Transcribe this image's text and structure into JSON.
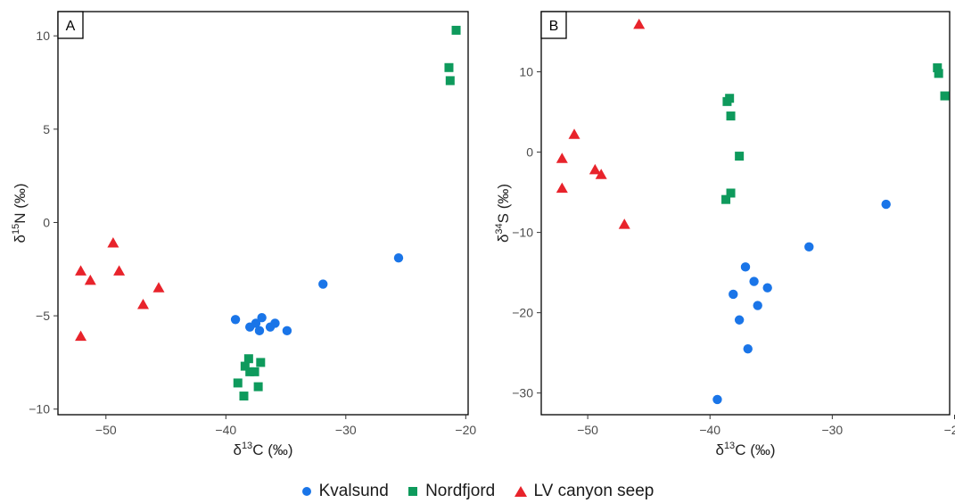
{
  "colors": {
    "Kvalsund": "#1a75e8",
    "Nordfjord": "#0e9a5c",
    "LV canyon seep": "#e8232b",
    "axis": "#000000",
    "tick_text": "#4d4d4d"
  },
  "legend": [
    {
      "label": "Kvalsund",
      "shape": "circle",
      "color": "#1a75e8"
    },
    {
      "label": "Nordfjord",
      "shape": "square",
      "color": "#0e9a5c"
    },
    {
      "label": "LV canyon seep",
      "shape": "triangle",
      "color": "#e8232b"
    }
  ],
  "chart_data": [
    {
      "panel": "A",
      "type": "scatter",
      "xlabel": "δ13C (‰)",
      "ylabel": "δ15N (‰)",
      "xlim": [
        -54,
        -19.8
      ],
      "ylim": [
        -10.3,
        11.3
      ],
      "xticks": [
        -50,
        -40,
        -30,
        -20
      ],
      "yticks": [
        -10,
        -5,
        0,
        5,
        10
      ],
      "grid": false,
      "series": [
        {
          "name": "Kvalsund",
          "shape": "circle",
          "points": [
            [
              -39.2,
              -5.2
            ],
            [
              -38.0,
              -5.6
            ],
            [
              -37.5,
              -5.4
            ],
            [
              -37.2,
              -5.8
            ],
            [
              -37.0,
              -5.1
            ],
            [
              -36.3,
              -5.6
            ],
            [
              -35.9,
              -5.4
            ],
            [
              -34.9,
              -5.8
            ],
            [
              -31.9,
              -3.3
            ],
            [
              -25.6,
              -1.9
            ]
          ]
        },
        {
          "name": "Nordfjord",
          "shape": "square",
          "points": [
            [
              -39.0,
              -8.6
            ],
            [
              -38.4,
              -7.7
            ],
            [
              -38.1,
              -7.3
            ],
            [
              -38.0,
              -8.0
            ],
            [
              -37.6,
              -8.0
            ],
            [
              -37.1,
              -7.5
            ],
            [
              -38.5,
              -9.3
            ],
            [
              -37.3,
              -8.8
            ],
            [
              -21.4,
              8.3
            ],
            [
              -21.3,
              7.6
            ],
            [
              -20.8,
              10.3
            ]
          ]
        },
        {
          "name": "LV canyon seep",
          "shape": "triangle",
          "points": [
            [
              -49.4,
              -1.1
            ],
            [
              -52.1,
              -2.6
            ],
            [
              -51.3,
              -3.1
            ],
            [
              -48.9,
              -2.6
            ],
            [
              -45.6,
              -3.5
            ],
            [
              -46.9,
              -4.4
            ],
            [
              -52.1,
              -6.1
            ]
          ]
        }
      ]
    },
    {
      "panel": "B",
      "type": "scatter",
      "xlabel": "δ13C (‰)",
      "ylabel": "δ34S (‰)",
      "xlim": [
        -53.8,
        -20.4
      ],
      "ylim": [
        -32.7,
        17.5
      ],
      "xticks": [
        -50,
        -40,
        -30,
        -20
      ],
      "yticks": [
        -30,
        -20,
        -10,
        0,
        10
      ],
      "grid": false,
      "series": [
        {
          "name": "Kvalsund",
          "shape": "circle",
          "points": [
            [
              -25.6,
              -6.5
            ],
            [
              -31.9,
              -11.8
            ],
            [
              -37.1,
              -14.3
            ],
            [
              -36.4,
              -16.1
            ],
            [
              -35.3,
              -16.9
            ],
            [
              -38.1,
              -17.7
            ],
            [
              -36.1,
              -19.1
            ],
            [
              -37.6,
              -20.9
            ],
            [
              -36.9,
              -24.5
            ],
            [
              -39.4,
              -30.8
            ]
          ]
        },
        {
          "name": "Nordfjord",
          "shape": "square",
          "points": [
            [
              -38.4,
              6.7
            ],
            [
              -38.6,
              6.3
            ],
            [
              -38.3,
              4.5
            ],
            [
              -37.6,
              -0.5
            ],
            [
              -38.3,
              -5.1
            ],
            [
              -38.7,
              -5.9
            ],
            [
              -21.4,
              10.5
            ],
            [
              -21.3,
              9.8
            ],
            [
              -20.8,
              7.0
            ]
          ]
        },
        {
          "name": "LV canyon seep",
          "shape": "triangle",
          "points": [
            [
              -45.8,
              15.9
            ],
            [
              -51.1,
              2.2
            ],
            [
              -52.1,
              -0.8
            ],
            [
              -49.4,
              -2.2
            ],
            [
              -48.9,
              -2.8
            ],
            [
              -52.1,
              -4.5
            ],
            [
              -47.0,
              -9.0
            ]
          ]
        }
      ]
    }
  ]
}
